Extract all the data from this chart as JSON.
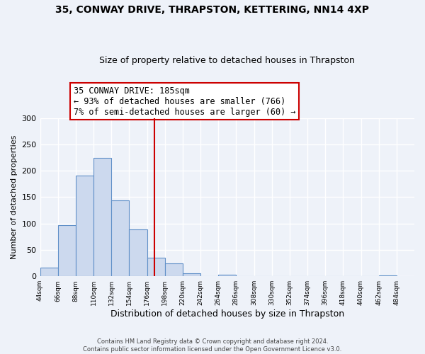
{
  "title": "35, CONWAY DRIVE, THRAPSTON, KETTERING, NN14 4XP",
  "subtitle": "Size of property relative to detached houses in Thrapston",
  "xlabel": "Distribution of detached houses by size in Thrapston",
  "ylabel": "Number of detached properties",
  "bar_left_edges": [
    44,
    66,
    88,
    110,
    132,
    154,
    176,
    198,
    220,
    242,
    264,
    286,
    308,
    330,
    352,
    374,
    396,
    418,
    440,
    462
  ],
  "bar_heights": [
    17,
    97,
    191,
    225,
    144,
    89,
    35,
    25,
    5,
    0,
    3,
    0,
    0,
    0,
    0,
    0,
    0,
    0,
    0,
    2
  ],
  "bin_width": 22,
  "bar_facecolor": "#ccd9ee",
  "bar_edgecolor": "#6090c8",
  "vline_x": 185,
  "vline_color": "#cc0000",
  "annotation_title": "35 CONWAY DRIVE: 185sqm",
  "annotation_line2": "← 93% of detached houses are smaller (766)",
  "annotation_line3": "7% of semi-detached houses are larger (60) →",
  "annotation_box_edgecolor": "#cc0000",
  "ylim": [
    0,
    300
  ],
  "xlim": [
    44,
    506
  ],
  "xtick_labels": [
    "44sqm",
    "66sqm",
    "88sqm",
    "110sqm",
    "132sqm",
    "154sqm",
    "176sqm",
    "198sqm",
    "220sqm",
    "242sqm",
    "264sqm",
    "286sqm",
    "308sqm",
    "330sqm",
    "352sqm",
    "374sqm",
    "396sqm",
    "418sqm",
    "440sqm",
    "462sqm",
    "484sqm"
  ],
  "xtick_positions": [
    44,
    66,
    88,
    110,
    132,
    154,
    176,
    198,
    220,
    242,
    264,
    286,
    308,
    330,
    352,
    374,
    396,
    418,
    440,
    462,
    484
  ],
  "footer1": "Contains HM Land Registry data © Crown copyright and database right 2024.",
  "footer2": "Contains public sector information licensed under the Open Government Licence v3.0.",
  "background_color": "#eef2f9",
  "plot_background_color": "#eef2f9"
}
